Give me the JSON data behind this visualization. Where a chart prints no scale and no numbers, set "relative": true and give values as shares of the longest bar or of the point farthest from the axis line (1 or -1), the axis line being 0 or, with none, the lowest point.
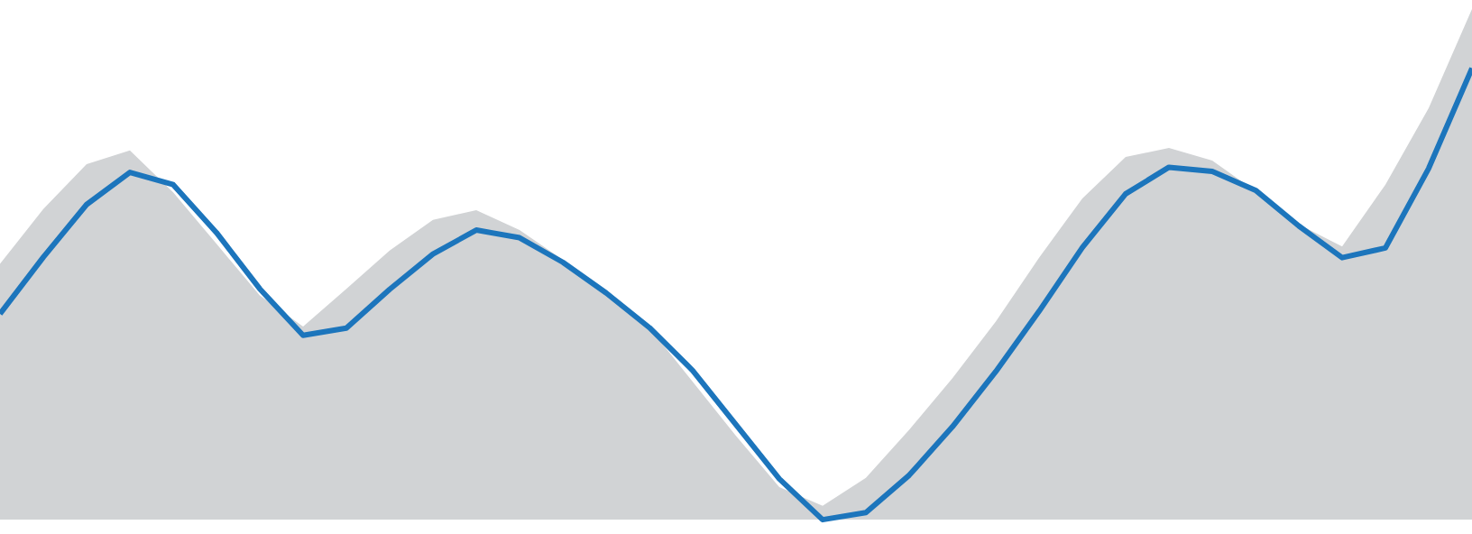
{
  "chart_data": {
    "type": "area",
    "relative": true,
    "categories": [
      null,
      null,
      null,
      null,
      null,
      null,
      null,
      null,
      null,
      null,
      null,
      null,
      null,
      null,
      null,
      null,
      null,
      null,
      null,
      null,
      null,
      null,
      null,
      null,
      null,
      null,
      null,
      null,
      null,
      null,
      null,
      null,
      null,
      null,
      null
    ],
    "series": [
      {
        "color": "#d1d3d5",
        "values": [
          0.501,
          0.608,
          0.696,
          0.723,
          0.641,
          0.54,
          0.439,
          0.378,
          0.452,
          0.527,
          0.587,
          0.606,
          0.567,
          0.509,
          0.445,
          0.376,
          0.27,
          0.164,
          0.064,
          0.027,
          0.082,
          0.176,
          0.277,
          0.388,
          0.513,
          0.629,
          0.71,
          0.728,
          0.703,
          0.643,
          0.578,
          0.535,
          0.656,
          0.806,
          1.0
        ]
      },
      {
        "type": "line",
        "color": "#1c75bc",
        "values": [
          0.403,
          0.514,
          0.617,
          0.68,
          0.656,
          0.562,
          0.452,
          0.361,
          0.375,
          0.451,
          0.52,
          0.567,
          0.552,
          0.504,
          0.444,
          0.376,
          0.292,
          0.186,
          0.08,
          0,
          0.014,
          0.087,
          0.182,
          0.29,
          0.408,
          0.533,
          0.638,
          0.69,
          0.682,
          0.645,
          0.575,
          0.513,
          0.532,
          0.688,
          0.884
        ]
      }
    ]
  }
}
